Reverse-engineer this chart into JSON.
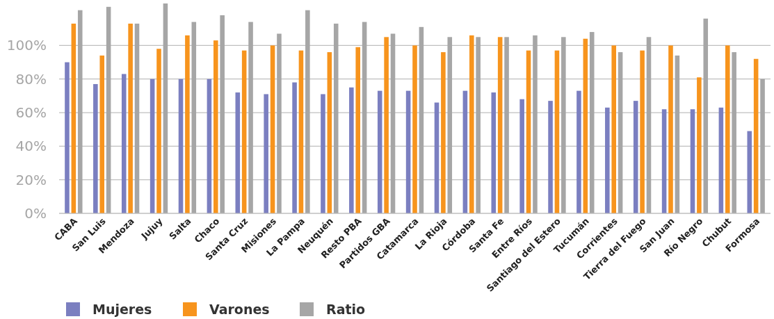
{
  "chart_data": {
    "type": "bar",
    "categories": [
      "CABA",
      "San Luis",
      "Mendoza",
      "Jujuy",
      "Salta",
      "Chaco",
      "Santa Cruz",
      "Misiones",
      "La Pampa",
      "Neuquén",
      "Resto PBA",
      "Partidos GBA",
      "Catamarca",
      "La Rioja",
      "Córdoba",
      "Santa Fe",
      "Entre Ríos",
      "Santiago del Estero",
      "Tucumán",
      "Corrientes",
      "Tierra del Fuego",
      "San Juan",
      "Río Negro",
      "Chubut",
      "Formosa"
    ],
    "series": [
      {
        "name": "Mujeres",
        "color": "#7b7fc0",
        "values": [
          90,
          77,
          83,
          80,
          80,
          80,
          72,
          71,
          78,
          71,
          75,
          73,
          73,
          66,
          73,
          72,
          68,
          67,
          73,
          63,
          67,
          62,
          62,
          63,
          49
        ]
      },
      {
        "name": "Varones",
        "color": "#f7941d",
        "values": [
          113,
          94,
          113,
          98,
          106,
          103,
          97,
          100,
          97,
          96,
          99,
          105,
          100,
          96,
          106,
          105,
          97,
          97,
          104,
          100,
          97,
          100,
          81,
          100,
          92
        ]
      },
      {
        "name": "Ratio",
        "color": "#a6a6a6",
        "values": [
          121,
          123,
          113,
          125,
          114,
          118,
          114,
          107,
          121,
          113,
          114,
          107,
          111,
          105,
          105,
          105,
          106,
          105,
          108,
          96,
          105,
          94,
          116,
          96,
          80
        ]
      }
    ],
    "ylim": [
      0,
      125
    ],
    "yticks": [
      {
        "value": 0,
        "label": "0%"
      },
      {
        "value": 20,
        "label": "20%"
      },
      {
        "value": 40,
        "label": "40%"
      },
      {
        "value": 60,
        "label": "60%"
      },
      {
        "value": 80,
        "label": "80%"
      },
      {
        "value": 100,
        "label": "100%"
      }
    ],
    "grid": "y",
    "legend": "bottom left"
  }
}
